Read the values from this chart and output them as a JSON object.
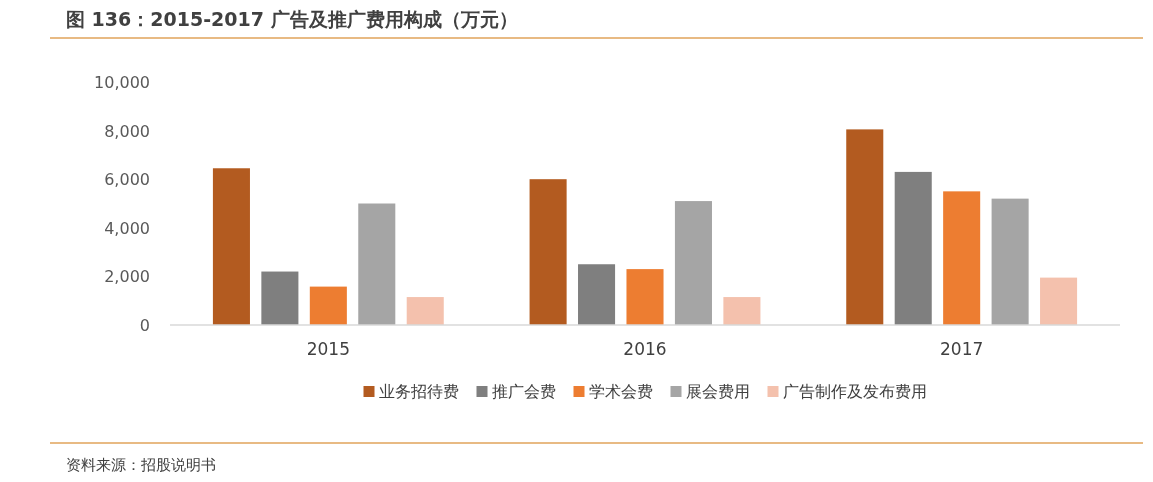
{
  "chart_data": {
    "type": "bar",
    "title": "图 136：2015-2017 广告及推广费用构成（万元）",
    "categories": [
      "2015",
      "2016",
      "2017"
    ],
    "series": [
      {
        "name": "业务招待费",
        "color": "#b35b20",
        "values": [
          6450,
          6000,
          8050
        ]
      },
      {
        "name": "推广会费",
        "color": "#7f7f7f",
        "values": [
          2200,
          2500,
          6300
        ]
      },
      {
        "name": "学术会费",
        "color": "#ed7d31",
        "values": [
          1580,
          2300,
          5500
        ]
      },
      {
        "name": "展会费用",
        "color": "#a5a5a5",
        "values": [
          5000,
          5100,
          5200
        ]
      },
      {
        "name": "广告制作及发布费用",
        "color": "#f4c1ad",
        "values": [
          1150,
          1150,
          1950
        ]
      }
    ],
    "ylim": [
      0,
      10000
    ],
    "yticks": [
      {
        "value": 0,
        "label": "0"
      },
      {
        "value": 2000,
        "label": "2,000"
      },
      {
        "value": 4000,
        "label": "4,000"
      },
      {
        "value": 6000,
        "label": "6,000"
      },
      {
        "value": 8000,
        "label": "8,000"
      },
      {
        "value": 10000,
        "label": "10,000"
      }
    ],
    "grid": false,
    "legend": "bottom",
    "annotations": [
      "资料来源：招股说明书"
    ]
  }
}
